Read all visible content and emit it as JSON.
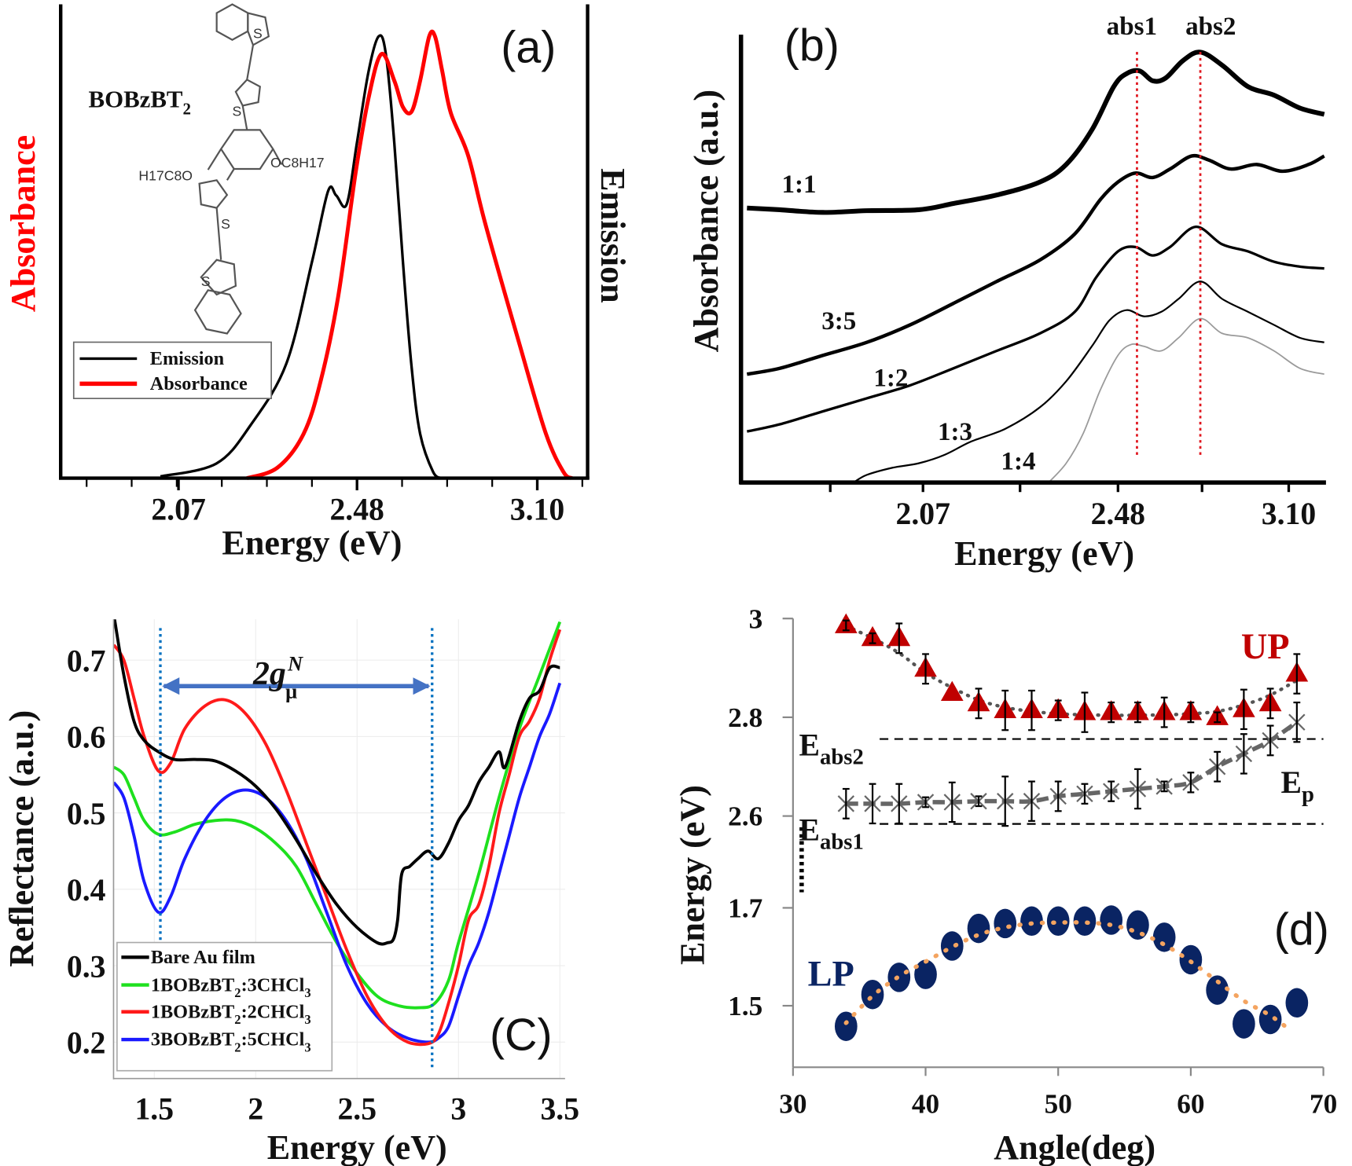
{
  "chart_data": [
    {
      "panel": "(a)",
      "type": "line",
      "xlabel": "Energy (eV)",
      "ylabel_left": "Absorbance",
      "ylabel_right": "Emission",
      "xticks": [
        "2.07",
        "2.48",
        "3.10"
      ],
      "xscale": "reciprocal (linear in wavelength)",
      "grid": false,
      "legend_position": "lower-left",
      "molecule_label": "BOBzBT",
      "molecule_label_sub": "2",
      "molecule_atoms": {
        "s": "S",
        "left_chain": "H17C8O",
        "right_chain": "OC8H17"
      },
      "colors": {
        "Emission": "#000000",
        "Absorbance": "#ff0000",
        "ylabel_left": "#ff0000"
      },
      "series": [
        {
          "name": "Emission",
          "x": [
            2.036,
            2.145,
            2.218,
            2.3,
            2.362,
            2.403,
            2.424,
            2.452,
            2.48,
            2.512,
            2.541,
            2.562,
            2.587,
            2.613,
            2.64,
            2.667,
            2.709,
            2.738
          ],
          "y": [
            0.004,
            0.033,
            0.12,
            0.26,
            0.49,
            0.65,
            0.64,
            0.62,
            0.76,
            0.92,
            1.0,
            0.96,
            0.76,
            0.49,
            0.25,
            0.1,
            0.014,
            0
          ]
        },
        {
          "name": "Absorbance",
          "x": [
            2.21,
            2.279,
            2.341,
            2.384,
            2.429,
            2.476,
            2.512,
            2.549,
            2.587,
            2.613,
            2.64,
            2.667,
            2.696,
            2.715,
            2.738,
            2.768,
            2.829,
            2.892,
            3.027,
            3.138,
            3.217,
            3.257
          ],
          "y": [
            0,
            0.024,
            0.1,
            0.22,
            0.41,
            0.69,
            0.86,
            0.96,
            0.9,
            0.84,
            0.83,
            0.9,
            1.0,
            1.0,
            0.925,
            0.827,
            0.73,
            0.575,
            0.3,
            0.1,
            0.014,
            0
          ]
        }
      ]
    },
    {
      "panel": "(b)",
      "type": "line",
      "xlabel": "Energy (eV)",
      "ylabel": "Absorbance (a.u.)",
      "xticks": [
        "2.07",
        "2.48",
        "3.10"
      ],
      "grid": false,
      "markers": [
        {
          "label": "abs1",
          "x": 2.549,
          "color": "#e0161e"
        },
        {
          "label": "abs2",
          "x": 2.779,
          "color": "#e0161e"
        }
      ],
      "series": [
        {
          "name": "1:1",
          "color": "#000000",
          "x": [
            1.7,
            1.769,
            1.86,
            1.952,
            2.061,
            2.134,
            2.225,
            2.316,
            2.371,
            2.425,
            2.471,
            2.511,
            2.559,
            2.606,
            2.653,
            2.716,
            2.779,
            2.858,
            2.952,
            3.046,
            3.141,
            3.229
          ],
          "y": [
            0.613,
            0.609,
            0.603,
            0.607,
            0.609,
            0.623,
            0.642,
            0.671,
            0.71,
            0.787,
            0.884,
            0.913,
            0.919,
            0.897,
            0.903,
            0.942,
            0.961,
            0.932,
            0.884,
            0.865,
            0.836,
            0.822
          ]
        },
        {
          "name": "3:5",
          "color": "#000000",
          "x": [
            1.7,
            1.769,
            1.86,
            1.952,
            2.043,
            2.134,
            2.225,
            2.316,
            2.389,
            2.443,
            2.48,
            2.543,
            2.606,
            2.669,
            2.747,
            2.81,
            2.889,
            2.984,
            3.078,
            3.172,
            3.229
          ],
          "y": [
            0.242,
            0.255,
            0.284,
            0.313,
            0.352,
            0.4,
            0.449,
            0.497,
            0.555,
            0.632,
            0.671,
            0.691,
            0.681,
            0.7,
            0.729,
            0.72,
            0.7,
            0.71,
            0.695,
            0.71,
            0.729
          ]
        },
        {
          "name": "1:2",
          "color": "#000000",
          "x": [
            1.7,
            1.769,
            1.86,
            1.952,
            2.043,
            2.134,
            2.225,
            2.316,
            2.389,
            2.434,
            2.48,
            2.543,
            2.606,
            2.669,
            2.763,
            2.858,
            2.952,
            3.046,
            3.141,
            3.229
          ],
          "y": [
            0.114,
            0.13,
            0.159,
            0.188,
            0.217,
            0.255,
            0.294,
            0.333,
            0.381,
            0.458,
            0.516,
            0.526,
            0.507,
            0.526,
            0.571,
            0.532,
            0.516,
            0.493,
            0.482,
            0.478
          ]
        },
        {
          "name": "1:3",
          "color": "#000000",
          "x": [
            1.924,
            1.952,
            2.006,
            2.061,
            2.116,
            2.17,
            2.243,
            2.316,
            2.371,
            2.425,
            2.462,
            2.511,
            2.574,
            2.637,
            2.7,
            2.779,
            2.858,
            2.952,
            3.046,
            3.141,
            3.229
          ],
          "y": [
            0,
            0.017,
            0.033,
            0.043,
            0.062,
            0.091,
            0.12,
            0.168,
            0.226,
            0.304,
            0.362,
            0.385,
            0.371,
            0.381,
            0.41,
            0.449,
            0.41,
            0.381,
            0.352,
            0.323,
            0.313
          ]
        },
        {
          "name": "1:4",
          "color": "#9a9a9a",
          "x": [
            2.334,
            2.371,
            2.407,
            2.443,
            2.48,
            2.527,
            2.574,
            2.637,
            2.7,
            2.779,
            2.858,
            2.952,
            3.046,
            3.141,
            3.229
          ],
          "y": [
            0,
            0.043,
            0.11,
            0.207,
            0.284,
            0.308,
            0.304,
            0.294,
            0.323,
            0.366,
            0.333,
            0.323,
            0.294,
            0.255,
            0.242
          ]
        }
      ]
    },
    {
      "panel": "(C)",
      "type": "line",
      "xlabel": "Energy (eV)",
      "ylabel": "Reflectance (a.u.)",
      "xticks": [
        "1.5",
        "2",
        "2.5",
        "3",
        "3.5"
      ],
      "yticks": [
        "0.2",
        "0.3",
        "0.4",
        "0.5",
        "0.6",
        "0.7"
      ],
      "xlim": [
        1.3,
        3.5
      ],
      "ylim": [
        0.15,
        0.75
      ],
      "grid": true,
      "legend_position": "lower-left",
      "annotation": {
        "text": "2g",
        "sup": "N",
        "sub": "μ",
        "from": 1.53,
        "to": 2.87,
        "color": "#4472c4",
        "line_color": "#0070c0"
      },
      "series": [
        {
          "name": "Bare Au film",
          "color": "#000000",
          "x": [
            1.3,
            1.35,
            1.4,
            1.45,
            1.52,
            1.6,
            1.7,
            1.8,
            1.9,
            2.0,
            2.1,
            2.2,
            2.3,
            2.4,
            2.5,
            2.6,
            2.65,
            2.68,
            2.7,
            2.72,
            2.76,
            2.8,
            2.85,
            2.9,
            2.95,
            3.0,
            3.05,
            3.1,
            3.15,
            3.2,
            3.23,
            3.3,
            3.35,
            3.4,
            3.45,
            3.5
          ],
          "y": [
            0.76,
            0.68,
            0.62,
            0.595,
            0.58,
            0.57,
            0.57,
            0.568,
            0.555,
            0.535,
            0.505,
            0.465,
            0.42,
            0.38,
            0.35,
            0.33,
            0.33,
            0.335,
            0.36,
            0.42,
            0.43,
            0.44,
            0.45,
            0.44,
            0.46,
            0.49,
            0.51,
            0.54,
            0.56,
            0.58,
            0.56,
            0.62,
            0.65,
            0.66,
            0.69,
            0.69
          ]
        },
        {
          "name": "1BOBzBT",
          "name_sub1": "2",
          "name_mid": ":3CHCl",
          "name_sub2": "3",
          "color": "#1ee01e",
          "x": [
            1.3,
            1.35,
            1.4,
            1.45,
            1.52,
            1.6,
            1.7,
            1.8,
            1.9,
            2.0,
            2.1,
            2.2,
            2.3,
            2.4,
            2.5,
            2.6,
            2.7,
            2.8,
            2.88,
            2.95,
            3.0,
            3.1,
            3.2,
            3.3,
            3.4,
            3.5
          ],
          "y": [
            0.56,
            0.55,
            0.52,
            0.49,
            0.472,
            0.475,
            0.485,
            0.49,
            0.49,
            0.48,
            0.46,
            0.43,
            0.38,
            0.33,
            0.29,
            0.26,
            0.248,
            0.245,
            0.25,
            0.28,
            0.33,
            0.42,
            0.52,
            0.61,
            0.68,
            0.75
          ]
        },
        {
          "name": "1BOBzBT",
          "name_sub1": "2",
          "name_mid": ":2CHCl",
          "name_sub2": "3",
          "color": "#ff1a1a",
          "x": [
            1.3,
            1.35,
            1.4,
            1.45,
            1.52,
            1.58,
            1.65,
            1.75,
            1.85,
            1.95,
            2.05,
            2.15,
            2.25,
            2.35,
            2.45,
            2.55,
            2.65,
            2.75,
            2.85,
            2.9,
            2.95,
            3.0,
            3.05,
            3.1,
            3.15,
            3.2,
            3.25,
            3.3,
            3.35,
            3.4,
            3.45,
            3.5
          ],
          "y": [
            0.72,
            0.7,
            0.65,
            0.6,
            0.555,
            0.565,
            0.61,
            0.64,
            0.648,
            0.63,
            0.59,
            0.53,
            0.46,
            0.39,
            0.32,
            0.26,
            0.22,
            0.2,
            0.198,
            0.21,
            0.25,
            0.3,
            0.36,
            0.38,
            0.43,
            0.5,
            0.55,
            0.6,
            0.62,
            0.65,
            0.7,
            0.74
          ]
        },
        {
          "name": "3BOBzBT",
          "name_sub1": "2",
          "name_mid": ":5CHCl",
          "name_sub2": "3",
          "color": "#1a1aff",
          "x": [
            1.3,
            1.35,
            1.4,
            1.45,
            1.52,
            1.58,
            1.65,
            1.75,
            1.85,
            1.95,
            2.05,
            2.15,
            2.25,
            2.35,
            2.45,
            2.55,
            2.65,
            2.75,
            2.85,
            2.9,
            2.95,
            3.0,
            3.05,
            3.1,
            3.15,
            3.2,
            3.25,
            3.3,
            3.35,
            3.4,
            3.45,
            3.5
          ],
          "y": [
            0.54,
            0.52,
            0.47,
            0.41,
            0.37,
            0.39,
            0.44,
            0.49,
            0.52,
            0.53,
            0.52,
            0.49,
            0.44,
            0.37,
            0.3,
            0.25,
            0.22,
            0.205,
            0.2,
            0.205,
            0.22,
            0.26,
            0.3,
            0.33,
            0.37,
            0.42,
            0.47,
            0.52,
            0.56,
            0.6,
            0.63,
            0.67
          ]
        }
      ]
    },
    {
      "panel": "(d)",
      "type": "scatter",
      "xlabel": "Angle(deg)",
      "ylabel": "Energy (eV)",
      "xticks": [
        "30",
        "40",
        "50",
        "60",
        "70"
      ],
      "yticks": [
        "1.5",
        "1.7",
        "2.6",
        "2.8",
        "3"
      ],
      "xlim": [
        30,
        70
      ],
      "ylim_upper": [
        2.55,
        3.0
      ],
      "ylim_lower": [
        1.4,
        1.75
      ],
      "broken_axis": true,
      "grid": false,
      "reference_lines": [
        {
          "label": "E",
          "sub": "abs2",
          "y": 2.756
        },
        {
          "label": "E",
          "sub": "abs1",
          "y": 2.584
        }
      ],
      "ep_label": {
        "label": "E",
        "sub": "p"
      },
      "x": [
        34,
        36,
        38,
        40,
        42,
        44,
        46,
        48,
        50,
        52,
        54,
        56,
        58,
        60,
        62,
        64,
        66,
        68
      ],
      "series": [
        {
          "name": "UP",
          "color": "#c00000",
          "marker": "triangle",
          "y": [
            2.986,
            2.96,
            2.96,
            2.898,
            2.849,
            2.828,
            2.814,
            2.814,
            2.814,
            2.81,
            2.81,
            2.81,
            2.81,
            2.81,
            2.8,
            2.816,
            2.828,
            2.888
          ],
          "err": [
            0.01,
            0.01,
            0.03,
            0.03,
            0,
            0.03,
            0.04,
            0.04,
            0.02,
            0.04,
            0.02,
            0.02,
            0.03,
            0.02,
            0.01,
            0.04,
            0.03,
            0.04
          ],
          "fit": [
            2.985,
            2.96,
            2.93,
            2.89,
            2.86,
            2.835,
            2.82,
            2.812,
            2.807,
            2.805,
            2.804,
            2.804,
            2.805,
            2.807,
            2.812,
            2.825,
            2.845,
            2.875
          ],
          "fit_color": "#555555"
        },
        {
          "name": "Ep",
          "color": "#555555",
          "marker": "cross",
          "y": [
            2.625,
            2.625,
            2.625,
            2.628,
            2.628,
            2.63,
            2.63,
            2.63,
            2.64,
            2.645,
            2.65,
            2.655,
            2.66,
            2.668,
            2.7,
            2.726,
            2.753,
            2.79
          ],
          "err": [
            0.03,
            0.04,
            0.04,
            0.01,
            0.04,
            0.01,
            0.05,
            0.04,
            0.03,
            0.02,
            0.02,
            0.04,
            0.01,
            0.02,
            0.03,
            0.04,
            0.03,
            0.04
          ]
        },
        {
          "name": "LP",
          "color": "#0a2463",
          "marker": "ellipse",
          "y": [
            1.458,
            1.523,
            1.558,
            1.564,
            1.622,
            1.658,
            1.668,
            1.673,
            1.673,
            1.673,
            1.675,
            1.665,
            1.64,
            1.594,
            1.532,
            1.463,
            1.472,
            1.506
          ],
          "err": [
            0.02,
            0,
            0,
            0,
            0.01,
            0.02,
            0,
            0,
            0,
            0,
            0.01,
            0.02,
            0,
            0,
            0.02,
            0.01,
            0,
            0
          ],
          "fit": [
            1.465,
            1.52,
            1.56,
            1.59,
            1.62,
            1.645,
            1.66,
            1.668,
            1.67,
            1.67,
            1.665,
            1.65,
            1.625,
            1.59,
            1.55,
            1.51,
            1.48,
            1.45
          ],
          "fit_color": "#f4a460"
        }
      ]
    }
  ]
}
